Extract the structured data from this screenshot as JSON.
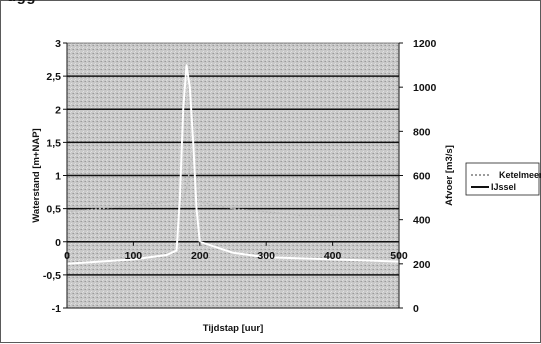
{
  "page": {
    "top_fragment": "ugg"
  },
  "chart_data": {
    "type": "line",
    "title": "",
    "xlabel": "Tijdstap [uur]",
    "ylabel": "Waterstand [m+NAP]",
    "y2label": "Afvoer [m3/s]",
    "xlim": [
      0,
      500
    ],
    "ylim": [
      -1,
      3
    ],
    "y2lim": [
      0,
      1200
    ],
    "x_ticks": [
      "0",
      "100",
      "200",
      "300",
      "400",
      "500"
    ],
    "y_ticks": [
      "-1",
      "-0,5",
      "0",
      "0,5",
      "1",
      "1,5",
      "2",
      "2,5",
      "3"
    ],
    "y2_ticks": [
      "0",
      "200",
      "400",
      "600",
      "800",
      "1000",
      "1200"
    ],
    "grid": true,
    "plot_background": "#c8c8c8",
    "gridline_color": "#111111",
    "legend_position": "right",
    "series": [
      {
        "name": "Ketelmeer",
        "axis": "left",
        "color": "#bdbdbd",
        "style": "stippled",
        "x": [
          0,
          50,
          100,
          150,
          175,
          180,
          185,
          190,
          195,
          200,
          250,
          300,
          350,
          400,
          450,
          500
        ],
        "y": [
          0.45,
          0.5,
          0.55,
          0.6,
          0.65,
          0.8,
          1.1,
          1.4,
          0.9,
          0.6,
          0.5,
          0.45,
          0.4,
          0.4,
          0.4,
          0.4
        ]
      },
      {
        "name": "IJssel",
        "axis": "right",
        "color": "#ffffff",
        "style": "solid",
        "x": [
          0,
          100,
          150,
          165,
          170,
          175,
          180,
          185,
          190,
          195,
          200,
          250,
          300,
          400,
          500
        ],
        "y2": [
          200,
          220,
          240,
          260,
          500,
          900,
          1100,
          1000,
          750,
          450,
          300,
          250,
          230,
          220,
          210
        ]
      }
    ]
  }
}
